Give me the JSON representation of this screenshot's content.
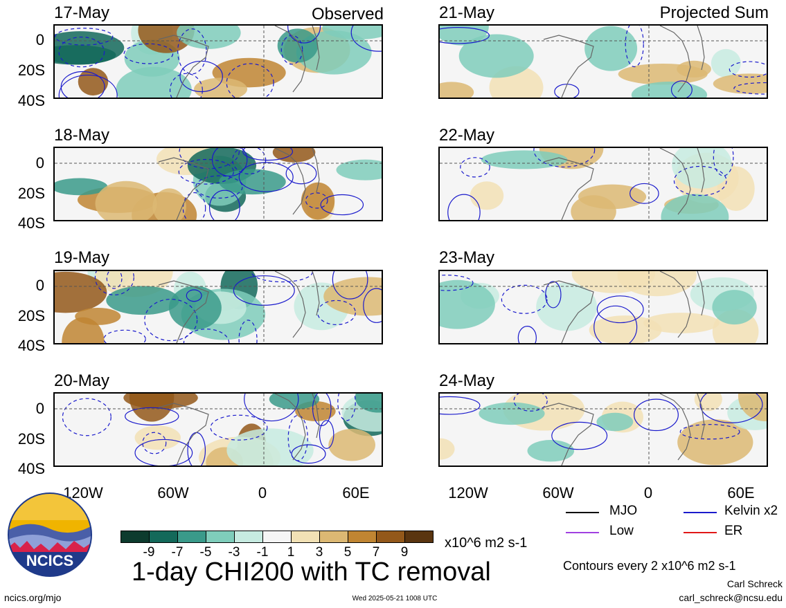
{
  "observed_label": "Observed",
  "projected_label": "Projected Sum",
  "observed_dates": [
    "17-May",
    "18-May",
    "19-May",
    "20-May"
  ],
  "projected_dates": [
    "21-May",
    "22-May",
    "23-May",
    "24-May"
  ],
  "y_ticks": [
    "0",
    "20S",
    "40S"
  ],
  "x_ticks": [
    "120W",
    "60W",
    "0",
    "60E"
  ],
  "legend": {
    "mjo": "MJO",
    "kelvin": "Kelvin x2",
    "low": "Low",
    "er": "ER",
    "colors": {
      "mjo": "#000000",
      "kelvin": "#1a1acc",
      "low": "#a040e0",
      "er": "#e01818"
    }
  },
  "colorbar": {
    "ticks": [
      "-9",
      "-7",
      "-5",
      "-3",
      "-1",
      "1",
      "3",
      "5",
      "7",
      "9"
    ],
    "colors": [
      "#0d3b2e",
      "#13695a",
      "#3a9a8a",
      "#7fcdbb",
      "#c7ebe1",
      "#f5f5f5",
      "#f2e1b5",
      "#dcb873",
      "#c08532",
      "#93581a",
      "#5a3510"
    ],
    "units": "x10^6 m2 s-1"
  },
  "title": "1-day CHI200 with TC removal",
  "contour_note": "Contours every 2 x10^6 m2 s-1",
  "author": "Carl Schreck",
  "email": "carl_schreck@ncsu.edu",
  "site": "ncics.org/mjo",
  "timestamp": "Wed 2025-05-21 1008 UTC",
  "logo_text": "NCICS"
}
